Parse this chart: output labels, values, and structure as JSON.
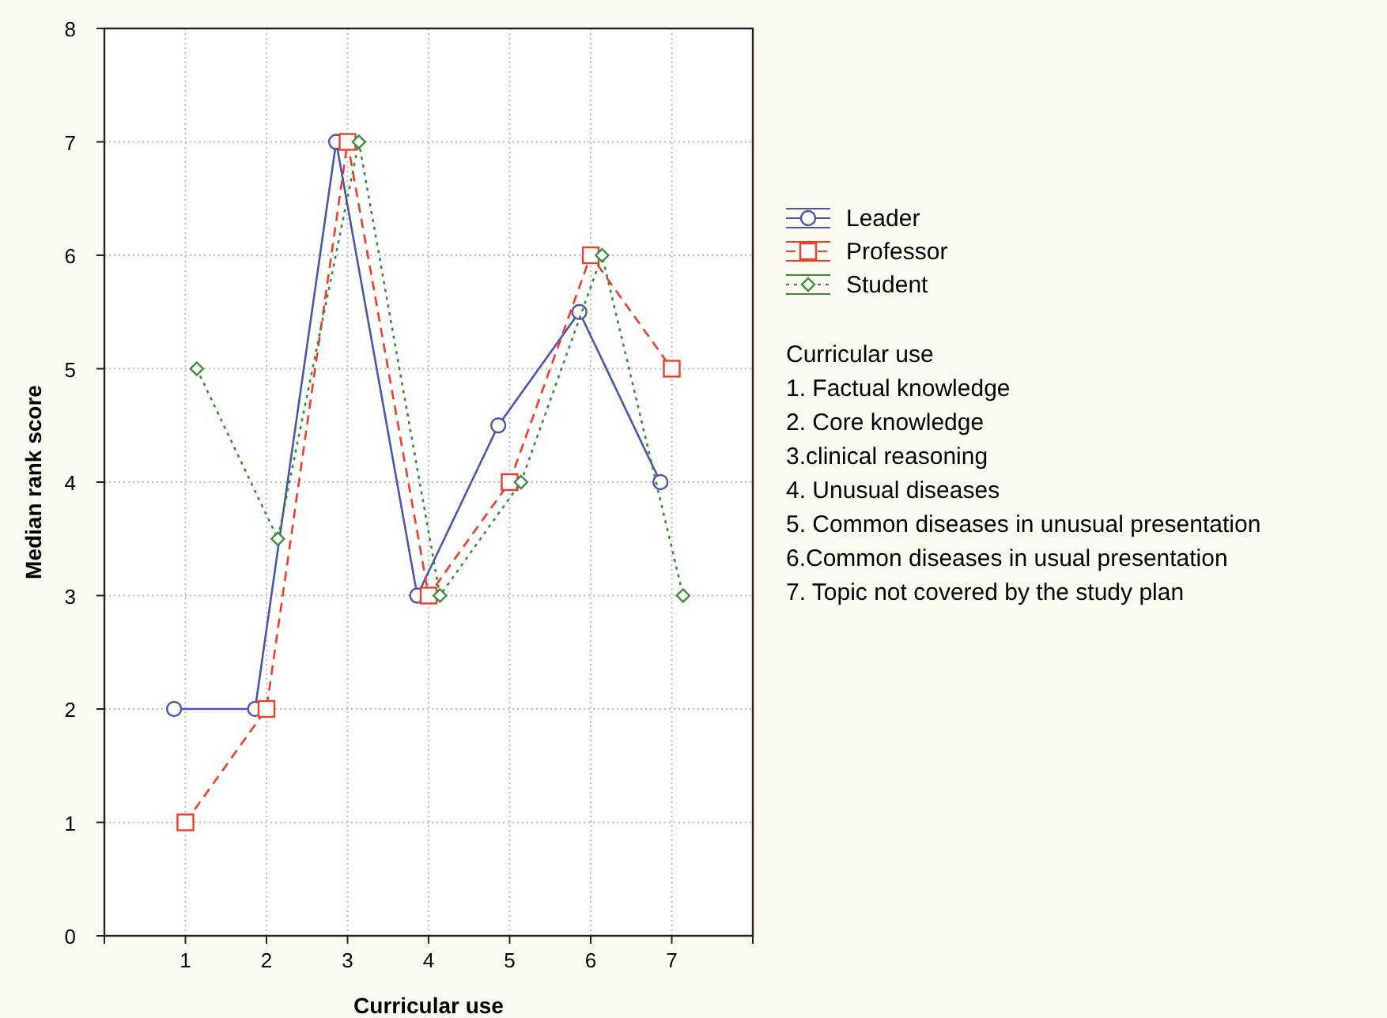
{
  "chart_data": {
    "type": "line",
    "xlabel": "Curricular use",
    "ylabel": "Median rank score",
    "xlim": [
      0,
      8
    ],
    "xticks": [
      {
        "value": 0,
        "label": null
      },
      1,
      2,
      3,
      4,
      5,
      6,
      7,
      {
        "value": 8,
        "label": null
      }
    ],
    "ylim": [
      0,
      8
    ],
    "yticks": [
      0,
      1,
      2,
      3,
      4,
      5,
      6,
      7,
      8
    ],
    "grid": true,
    "legend": "right",
    "series": [
      {
        "name": "Leader",
        "color": "#4a55b0",
        "marker": "circle",
        "line_style": "solid",
        "x": [
          0.86,
          1.86,
          2.86,
          3.86,
          4.86,
          5.86,
          6.86
        ],
        "values": [
          2,
          2,
          7,
          3,
          4.5,
          5.5,
          4
        ]
      },
      {
        "name": "Professor",
        "color": "#f03c28",
        "marker": "square",
        "line_style": "dashed",
        "x": [
          1,
          2,
          3,
          4,
          5,
          6,
          7
        ],
        "values": [
          1,
          2,
          7,
          3,
          4,
          6,
          5
        ]
      },
      {
        "name": "Student",
        "color": "#3a8a3a",
        "marker": "diamond",
        "line_style": "dotted",
        "x": [
          1.14,
          2.14,
          3.14,
          4.14,
          5.14,
          6.14,
          7.14
        ],
        "values": [
          5,
          3.5,
          7,
          3,
          4,
          6,
          3
        ]
      }
    ],
    "annotations": [
      "Curricular use",
      "1. Factual knowledge",
      "2. Core knowledge",
      "3.clinical reasoning",
      "4. Unusual diseases",
      "5. Common diseases in unusual presentation",
      "6.Common diseases in usual presentation",
      "7. Topic not covered by the study plan"
    ]
  }
}
